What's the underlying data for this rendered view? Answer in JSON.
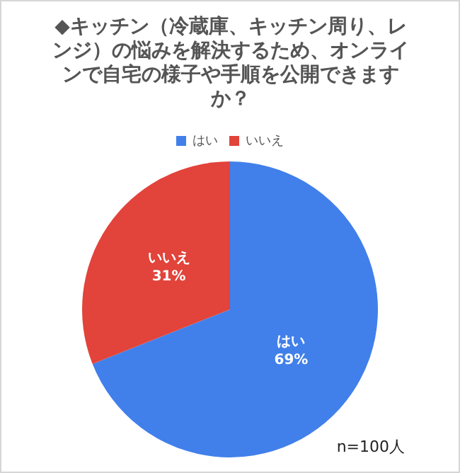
{
  "chart_data": {
    "type": "pie",
    "title": "◆キッチン（冷蔵庫、キッチン周り、レンジ）の悩みを解決するため、オンラインで自宅の様子や手順を公開できますか？",
    "categories": [
      "はい",
      "いいえ"
    ],
    "values": [
      69,
      31
    ],
    "colors": [
      "#4180ea",
      "#e2433a"
    ],
    "value_labels": [
      "69%",
      "31%"
    ],
    "legend": "top",
    "annotations": [
      "n=100人"
    ]
  }
}
